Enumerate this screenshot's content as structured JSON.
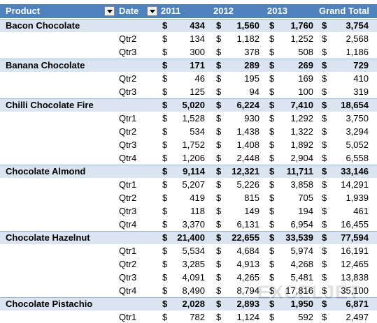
{
  "header": [
    "Product",
    "Date",
    "2011",
    "2012",
    "2013",
    "Grand Total"
  ],
  "currency": "$",
  "watermark": "EXCELJET",
  "rows": [
    {
      "product": "Bacon Chocolate",
      "cells": [
        "434",
        "1,560",
        "1,760",
        "3,754"
      ]
    },
    {
      "date": "Qtr2",
      "cells": [
        "134",
        "1,182",
        "1,252",
        "2,568"
      ]
    },
    {
      "date": "Qtr3",
      "cells": [
        "300",
        "378",
        "508",
        "1,186"
      ]
    },
    {
      "product": "Banana Chocolate",
      "cells": [
        "171",
        "289",
        "269",
        "729"
      ]
    },
    {
      "date": "Qtr2",
      "cells": [
        "46",
        "195",
        "169",
        "410"
      ]
    },
    {
      "date": "Qtr3",
      "cells": [
        "125",
        "94",
        "100",
        "319"
      ]
    },
    {
      "product": "Chilli Chocolate Fire",
      "cells": [
        "5,020",
        "6,224",
        "7,410",
        "18,654"
      ]
    },
    {
      "date": "Qtr1",
      "cells": [
        "1,528",
        "930",
        "1,292",
        "3,750"
      ]
    },
    {
      "date": "Qtr2",
      "cells": [
        "534",
        "1,438",
        "1,322",
        "3,294"
      ]
    },
    {
      "date": "Qtr3",
      "cells": [
        "1,752",
        "1,408",
        "1,892",
        "5,052"
      ]
    },
    {
      "date": "Qtr4",
      "cells": [
        "1,206",
        "2,448",
        "2,904",
        "6,558"
      ]
    },
    {
      "product": "Chocolate Almond",
      "cells": [
        "9,114",
        "12,321",
        "11,711",
        "33,146"
      ]
    },
    {
      "date": "Qtr1",
      "cells": [
        "5,207",
        "5,226",
        "3,858",
        "14,291"
      ]
    },
    {
      "date": "Qtr2",
      "cells": [
        "419",
        "815",
        "705",
        "1,939"
      ]
    },
    {
      "date": "Qtr3",
      "cells": [
        "118",
        "149",
        "194",
        "461"
      ]
    },
    {
      "date": "Qtr4",
      "cells": [
        "3,370",
        "6,131",
        "6,954",
        "16,455"
      ]
    },
    {
      "product": "Chocolate Hazelnut",
      "cells": [
        "21,400",
        "22,655",
        "33,539",
        "77,594"
      ]
    },
    {
      "date": "Qtr1",
      "cells": [
        "5,534",
        "4,684",
        "5,974",
        "16,191"
      ]
    },
    {
      "date": "Qtr2",
      "cells": [
        "3,285",
        "4,913",
        "4,268",
        "12,465"
      ]
    },
    {
      "date": "Qtr3",
      "cells": [
        "4,091",
        "4,265",
        "5,481",
        "13,838"
      ]
    },
    {
      "date": "Qtr4",
      "cells": [
        "8,490",
        "8,794",
        "17,816",
        "35,100"
      ]
    },
    {
      "product": "Chocolate Pistachio",
      "cells": [
        "2,028",
        "2,893",
        "1,950",
        "6,871"
      ]
    },
    {
      "date": "Qtr1",
      "cells": [
        "782",
        "1,124",
        "592",
        "2,497"
      ]
    }
  ]
}
